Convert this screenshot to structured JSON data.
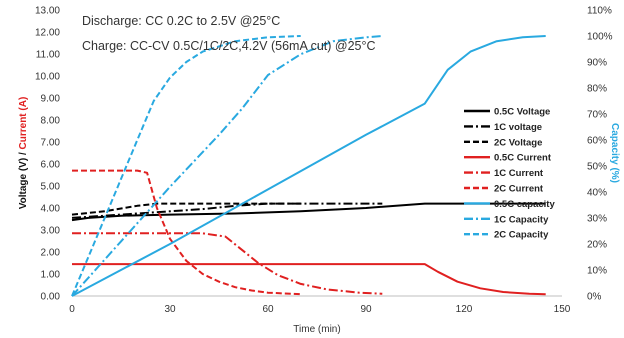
{
  "chart_data": {
    "type": "line",
    "annotations": [
      "Discharge: CC 0.2C to 2.5V @25°C",
      "Charge: CC-CV 0.5C/1C/2C,4.2V (56mA cut) @25°C"
    ],
    "xlabel": "Time (min)",
    "ylabel_left_part1": "Voltage (V) /",
    "ylabel_left_part2": "Current (A)",
    "ylabel_right": "Capacity (%)",
    "xlim": [
      0,
      150
    ],
    "ylim_left": [
      0,
      13
    ],
    "ylim_right": [
      0,
      110
    ],
    "x_ticks": [
      0,
      30,
      60,
      90,
      120,
      150
    ],
    "y_left_ticks": [
      "0.00",
      "1.00",
      "2.00",
      "3.00",
      "4.00",
      "5.00",
      "6.00",
      "7.00",
      "8.00",
      "9.00",
      "10.00",
      "11.00",
      "12.00",
      "13.00"
    ],
    "y_right_ticks": [
      "0%",
      "10%",
      "20%",
      "30%",
      "40%",
      "50%",
      "60%",
      "70%",
      "80%",
      "90%",
      "100%",
      "110%"
    ],
    "legend_position": "right",
    "grid": false,
    "series": [
      {
        "name": "0.5C Voltage",
        "axis": "left",
        "color": "#000000",
        "dash": "solid",
        "x": [
          0,
          5,
          15,
          30,
          50,
          70,
          90,
          108,
          120,
          135,
          145
        ],
        "y": [
          3.45,
          3.55,
          3.65,
          3.7,
          3.75,
          3.85,
          4.0,
          4.2,
          4.2,
          4.2,
          4.2
        ]
      },
      {
        "name": "1C voltage",
        "axis": "left",
        "color": "#000000",
        "dash": "dashdot",
        "x": [
          0,
          10,
          20,
          30,
          40,
          50,
          60,
          70,
          80,
          95
        ],
        "y": [
          3.55,
          3.65,
          3.75,
          3.85,
          3.95,
          4.1,
          4.2,
          4.2,
          4.2,
          4.2
        ]
      },
      {
        "name": "2C Voltage",
        "axis": "left",
        "color": "#000000",
        "dash": "dash",
        "x": [
          0,
          10,
          20,
          26,
          30,
          40,
          50,
          60,
          70
        ],
        "y": [
          3.7,
          3.85,
          4.1,
          4.2,
          4.2,
          4.2,
          4.2,
          4.2,
          4.2
        ]
      },
      {
        "name": "0.5C Current",
        "axis": "left",
        "color": "#e02020",
        "dash": "solid",
        "x": [
          0,
          30,
          60,
          90,
          108,
          112,
          118,
          125,
          132,
          140,
          145
        ],
        "y": [
          1.45,
          1.45,
          1.45,
          1.45,
          1.45,
          1.1,
          0.65,
          0.35,
          0.18,
          0.1,
          0.08
        ]
      },
      {
        "name": "1C Current",
        "axis": "left",
        "color": "#e02020",
        "dash": "dashdot",
        "x": [
          0,
          20,
          40,
          47,
          52,
          57,
          63,
          70,
          78,
          88,
          95
        ],
        "y": [
          2.85,
          2.85,
          2.85,
          2.7,
          2.1,
          1.5,
          0.95,
          0.55,
          0.3,
          0.15,
          0.1
        ]
      },
      {
        "name": "2C Current",
        "axis": "left",
        "color": "#e02020",
        "dash": "dash",
        "x": [
          0,
          10,
          20,
          23,
          26,
          30,
          35,
          40,
          45,
          50,
          55,
          60,
          70
        ],
        "y": [
          5.7,
          5.7,
          5.7,
          5.6,
          4.0,
          2.6,
          1.6,
          1.0,
          0.65,
          0.4,
          0.25,
          0.15,
          0.08
        ]
      },
      {
        "name": "0.5C capacity",
        "axis": "right",
        "color": "#29a9e0",
        "dash": "solid",
        "x": [
          0,
          30,
          60,
          90,
          108,
          115,
          122,
          130,
          138,
          145
        ],
        "y": [
          0,
          20,
          41,
          62,
          74,
          87,
          94,
          98,
          99.5,
          100
        ]
      },
      {
        "name": "1C Capacity",
        "axis": "right",
        "color": "#29a9e0",
        "dash": "dashdot",
        "x": [
          0,
          15,
          30,
          45,
          52,
          60,
          70,
          80,
          90,
          95
        ],
        "y": [
          0,
          21,
          42,
          62,
          72,
          85,
          93,
          98,
          99.5,
          100
        ]
      },
      {
        "name": "2C Capacity",
        "axis": "right",
        "color": "#29a9e0",
        "dash": "dash",
        "x": [
          0,
          10,
          20,
          25,
          30,
          35,
          40,
          50,
          60,
          70
        ],
        "y": [
          0,
          30,
          60,
          75,
          84,
          90,
          94,
          98,
          99.5,
          100
        ]
      }
    ]
  }
}
